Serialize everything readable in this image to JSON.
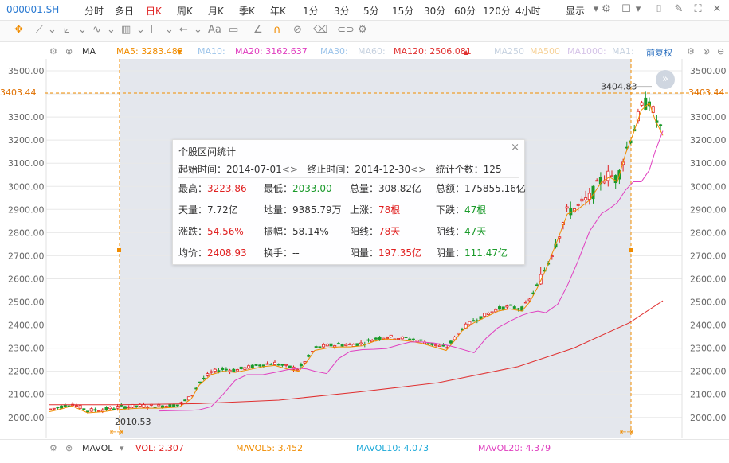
{
  "topbar": {
    "code": "000001.SH",
    "periods": [
      "分时",
      "多日",
      "日K",
      "周K",
      "月K",
      "季K",
      "年K",
      "1分",
      "3分",
      "5分",
      "15分",
      "30分",
      "60分",
      "120分",
      "4小时"
    ],
    "active_period": "日K",
    "display_label": "显示"
  },
  "mabar": {
    "indicator": "MA",
    "ma5": "MA5: 3283.488",
    "ma10": "MA10:",
    "ma20": "MA20: 3162.637",
    "ma30": "MA30:",
    "ma60": "MA60:",
    "ma120": "MA120: 2506.081",
    "ma250": "MA250",
    "ma500": "MA500",
    "ma1000": "MA1000:",
    "ma1": "MA1:",
    "adjust": "前复权"
  },
  "axis": {
    "y_labels": [
      "3500.00",
      "3403.44",
      "3300.00",
      "3200.00",
      "3100.00",
      "3000.00",
      "2900.00",
      "2800.00",
      "2700.00",
      "2600.00",
      "2500.00",
      "2400.00",
      "2300.00",
      "2200.00",
      "2100.00",
      "2000.00"
    ],
    "price_marker": "3403.44",
    "high_label": "3404.83",
    "low_label": "2010.53"
  },
  "colors": {
    "up": "#e02020",
    "down": "#1a9a2a",
    "ma5": "#f08c00",
    "ma20": "#e040c0",
    "ma120": "#e03030",
    "accent": "#f08c00"
  },
  "popup": {
    "title": "个股区间统计",
    "start_label": "起始时间：",
    "start_value": "2014-07-01",
    "end_label": "终止时间：",
    "end_value": "2014-12-30",
    "count_label": "统计个数：",
    "count_value": "125",
    "rows": [
      [
        {
          "k": "最高：",
          "v": "3223.86",
          "c": "red"
        },
        {
          "k": "最低：",
          "v": "2033.00",
          "c": "green"
        },
        {
          "k": "总量：",
          "v": "308.82亿",
          "c": ""
        },
        {
          "k": "总额：",
          "v": "175855.16亿",
          "c": ""
        }
      ],
      [
        {
          "k": "天量：",
          "v": "7.72亿",
          "c": ""
        },
        {
          "k": "地量：",
          "v": "9385.79万",
          "c": ""
        },
        {
          "k": "上涨：",
          "v": "78根",
          "c": "red"
        },
        {
          "k": "下跌：",
          "v": "47根",
          "c": "green"
        }
      ],
      [
        {
          "k": "涨跌：",
          "v": "54.56%",
          "c": "red"
        },
        {
          "k": "振幅：",
          "v": "58.14%",
          "c": ""
        },
        {
          "k": "阳线：",
          "v": "78天",
          "c": "red"
        },
        {
          "k": "阴线：",
          "v": "47天",
          "c": "green"
        }
      ],
      [
        {
          "k": "均价：",
          "v": "2408.93",
          "c": "red"
        },
        {
          "k": "换手：",
          "v": "--",
          "c": ""
        },
        {
          "k": "阳量：",
          "v": "197.35亿",
          "c": "red"
        },
        {
          "k": "阴量：",
          "v": "111.47亿",
          "c": "green"
        }
      ]
    ]
  },
  "volbar": {
    "indicator": "MAVOL",
    "vol": "VOL: 2.307",
    "mavol5": "MAVOL5: 3.452",
    "mavol10": "MAVOL10: 4.073",
    "mavol20": "MAVOL20: 4.379"
  }
}
